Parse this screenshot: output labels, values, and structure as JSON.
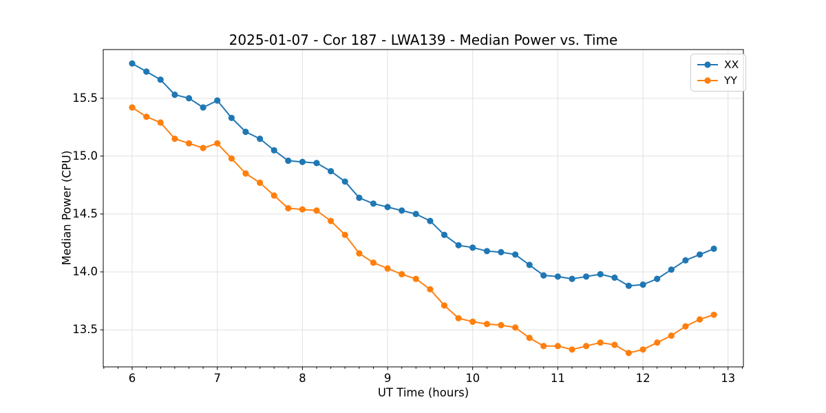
{
  "figure": {
    "background": "#ffffff",
    "spine_color": "#000000",
    "tick_color": "#000000"
  },
  "chart_data": {
    "type": "line",
    "title": "2025-01-07 - Cor 187 - LWA139 - Median Power vs. Time",
    "xlabel": "UT Time (hours)",
    "ylabel": "Median Power (CPU)",
    "xlim": [
      5.66,
      13.18
    ],
    "ylim": [
      13.18,
      15.92
    ],
    "x_ticks": [
      6,
      7,
      8,
      9,
      10,
      11,
      12,
      13
    ],
    "y_ticks": [
      13.5,
      14.0,
      14.5,
      15.0,
      15.5
    ],
    "x_minor_subdivisions": 6,
    "grid": true,
    "grid_color": "#e0e0e0",
    "legend_position": "upper right",
    "marker": "circle",
    "x": [
      6.0,
      6.167,
      6.333,
      6.5,
      6.667,
      6.833,
      7.0,
      7.167,
      7.333,
      7.5,
      7.667,
      7.833,
      8.0,
      8.167,
      8.333,
      8.5,
      8.667,
      8.833,
      9.0,
      9.167,
      9.333,
      9.5,
      9.667,
      9.833,
      10.0,
      10.167,
      10.333,
      10.5,
      10.667,
      10.833,
      11.0,
      11.167,
      11.333,
      11.5,
      11.667,
      11.833,
      12.0,
      12.167,
      12.333,
      12.5,
      12.667,
      12.833
    ],
    "series": [
      {
        "name": "XX",
        "color": "#1f77b4",
        "values": [
          15.8,
          15.73,
          15.66,
          15.53,
          15.5,
          15.42,
          15.48,
          15.33,
          15.21,
          15.15,
          15.05,
          14.96,
          14.95,
          14.94,
          14.87,
          14.78,
          14.64,
          14.59,
          14.56,
          14.53,
          14.5,
          14.44,
          14.32,
          14.23,
          14.21,
          14.18,
          14.17,
          14.15,
          14.06,
          13.97,
          13.96,
          13.94,
          13.96,
          13.98,
          13.95,
          13.88,
          13.89,
          13.94,
          14.02,
          14.1,
          14.15,
          14.2
        ]
      },
      {
        "name": "YY",
        "color": "#ff7f0e",
        "values": [
          15.42,
          15.34,
          15.29,
          15.15,
          15.11,
          15.07,
          15.11,
          14.98,
          14.85,
          14.77,
          14.66,
          14.55,
          14.54,
          14.53,
          14.44,
          14.32,
          14.16,
          14.08,
          14.03,
          13.98,
          13.94,
          13.85,
          13.71,
          13.6,
          13.57,
          13.55,
          13.54,
          13.52,
          13.43,
          13.36,
          13.36,
          13.33,
          13.36,
          13.39,
          13.37,
          13.3,
          13.33,
          13.39,
          13.45,
          13.53,
          13.59,
          13.63
        ]
      }
    ]
  }
}
